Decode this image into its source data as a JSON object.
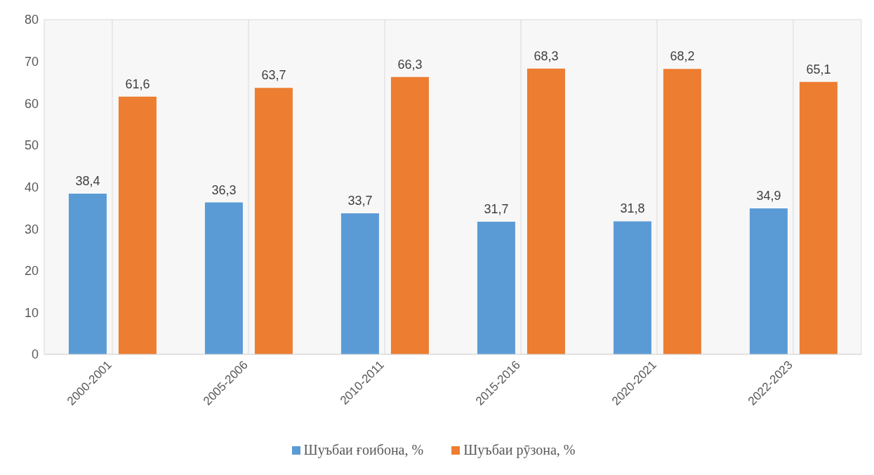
{
  "chart_data": {
    "type": "bar",
    "categories": [
      "2000-2001",
      "2005-2006",
      "2010-2011",
      "2015-2016",
      "2020-2021",
      "2022-2023"
    ],
    "series": [
      {
        "name": "Шуъбаи ғоибона, %",
        "color": "#5b9bd5",
        "values": [
          38.4,
          36.3,
          33.7,
          31.7,
          31.8,
          34.9
        ],
        "value_labels": [
          "38,4",
          "36,3",
          "33,7",
          "31,7",
          "31,8",
          "34,9"
        ]
      },
      {
        "name": "Шуъбаи рӯзона, %",
        "color": "#ed7d31",
        "values": [
          61.6,
          63.7,
          66.3,
          68.3,
          68.2,
          65.1
        ],
        "value_labels": [
          "61,6",
          "63,7",
          "66,3",
          "68,3",
          "68,2",
          "65,1"
        ]
      }
    ],
    "ylim": [
      0,
      80
    ],
    "yticks": [
      0,
      10,
      20,
      30,
      40,
      50,
      60,
      70,
      80
    ],
    "grid": true,
    "legend": "bottom"
  }
}
